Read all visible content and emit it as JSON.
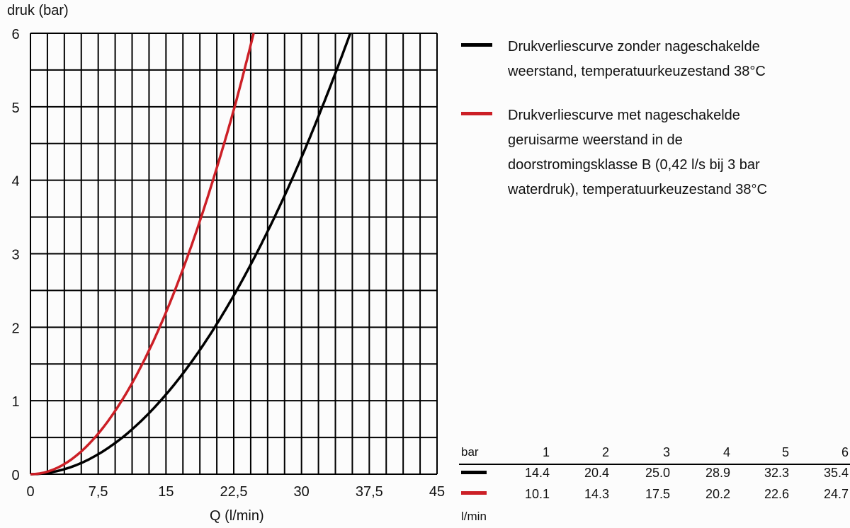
{
  "chart_data": {
    "type": "line",
    "ylabel": "druk (bar)",
    "xlabel": "Q (l/min)",
    "xlim": [
      0,
      45
    ],
    "ylim": [
      0,
      6
    ],
    "xticks": [
      "0",
      "7,5",
      "15",
      "22,5",
      "30",
      "37,5",
      "45"
    ],
    "yticks": [
      "0",
      "1",
      "2",
      "3",
      "4",
      "5",
      "6"
    ],
    "grid": true,
    "legend_position": "right",
    "series": [
      {
        "name": "Drukverliescurve zonder nageschakelde weerstand, temperatuurkeuzestand 38°C",
        "color": "#000000",
        "x": [
          0,
          14.4,
          20.4,
          25.0,
          28.9,
          32.3,
          35.4
        ],
        "y": [
          0,
          1,
          2,
          3,
          4,
          5,
          6
        ]
      },
      {
        "name": "Drukverliescurve met nageschakelde geruisarme weerstand in de doorstromingsklasse B (0,42 l/s bij 3 bar waterdruk), temperatuurkeuzestand 38°C",
        "color": "#cc1f26",
        "x": [
          0,
          10.1,
          14.3,
          17.5,
          20.2,
          22.6,
          24.7
        ],
        "y": [
          0,
          1,
          2,
          3,
          4,
          5,
          6
        ]
      }
    ]
  },
  "legend": {
    "black": "Drukverliescurve zonder nageschakelde\nweerstand, temperatuurkeuzestand 38°C",
    "red": "Drukverliescurve met nageschakelde\ngeruisarme weerstand in de\ndoorstromingsklasse B (0,42 l/s bij 3 bar\nwaterdruk), temperatuurkeuzestand 38°C"
  },
  "table": {
    "header_label": "bar",
    "unit_label": "l/min",
    "bars": [
      "1",
      "2",
      "3",
      "4",
      "5",
      "6"
    ],
    "black_row": [
      "14.4",
      "20.4",
      "25.0",
      "28.9",
      "32.3",
      "35.4"
    ],
    "red_row": [
      "10.1",
      "14.3",
      "17.5",
      "20.2",
      "22.6",
      "24.7"
    ]
  }
}
